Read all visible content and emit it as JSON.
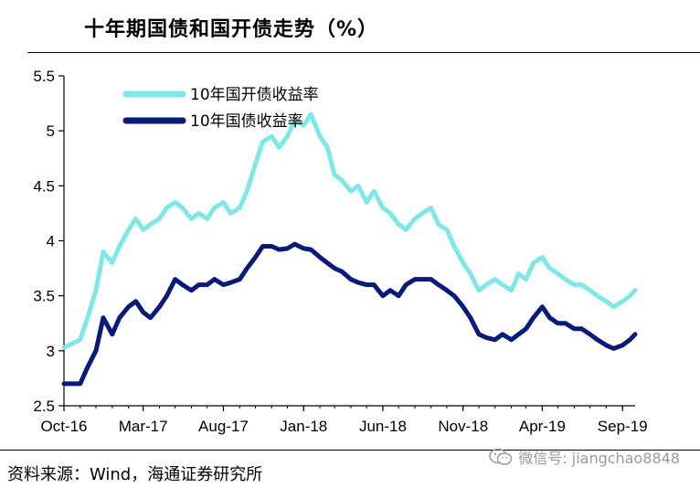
{
  "chart_data": {
    "type": "line",
    "title": "十年期国债和国开债走势（%）",
    "xlabel": "",
    "ylabel": "",
    "ylim": [
      2.5,
      5.5
    ],
    "y_ticks": [
      "2.5",
      "3",
      "3.5",
      "4",
      "4.5",
      "5",
      "5.5"
    ],
    "x_ticks": [
      "Oct-16",
      "Mar-17",
      "Aug-17",
      "Jan-18",
      "Jun-18",
      "Nov-18",
      "Apr-19",
      "Sep-19"
    ],
    "x": [
      "2016-10-01",
      "2016-11-01",
      "2016-11-15",
      "2016-12-01",
      "2016-12-15",
      "2017-01-01",
      "2017-01-15",
      "2017-02-01",
      "2017-02-15",
      "2017-03-01",
      "2017-03-15",
      "2017-04-01",
      "2017-04-15",
      "2017-05-01",
      "2017-05-15",
      "2017-06-01",
      "2017-06-15",
      "2017-07-01",
      "2017-07-15",
      "2017-08-01",
      "2017-08-15",
      "2017-09-01",
      "2017-09-15",
      "2017-10-01",
      "2017-10-15",
      "2017-11-01",
      "2017-11-15",
      "2017-12-01",
      "2017-12-15",
      "2018-01-01",
      "2018-01-15",
      "2018-02-01",
      "2018-02-15",
      "2018-03-01",
      "2018-03-15",
      "2018-04-01",
      "2018-04-15",
      "2018-05-01",
      "2018-05-15",
      "2018-06-01",
      "2018-06-15",
      "2018-07-01",
      "2018-07-15",
      "2018-08-01",
      "2018-08-15",
      "2018-09-01",
      "2018-09-15",
      "2018-10-01",
      "2018-10-15",
      "2018-11-01",
      "2018-11-15",
      "2018-12-01",
      "2018-12-15",
      "2019-01-01",
      "2019-01-15",
      "2019-02-01",
      "2019-02-15",
      "2019-03-01",
      "2019-03-15",
      "2019-04-01",
      "2019-04-15",
      "2019-05-01",
      "2019-05-15",
      "2019-06-01",
      "2019-06-15",
      "2019-07-01",
      "2019-07-15",
      "2019-08-01",
      "2019-08-15",
      "2019-09-01",
      "2019-09-15",
      "2019-09-25"
    ],
    "series": [
      {
        "name": "10年国开债收益率",
        "color": "#7FE8E6",
        "values": [
          3.03,
          3.1,
          3.3,
          3.55,
          3.9,
          3.8,
          3.95,
          4.1,
          4.2,
          4.1,
          4.15,
          4.2,
          4.3,
          4.35,
          4.3,
          4.2,
          4.25,
          4.2,
          4.3,
          4.35,
          4.25,
          4.3,
          4.45,
          4.7,
          4.9,
          4.95,
          4.85,
          4.95,
          5.1,
          5.05,
          5.15,
          4.95,
          4.85,
          4.6,
          4.55,
          4.45,
          4.5,
          4.35,
          4.45,
          4.3,
          4.25,
          4.15,
          4.1,
          4.2,
          4.25,
          4.3,
          4.15,
          4.1,
          3.95,
          3.8,
          3.7,
          3.55,
          3.6,
          3.65,
          3.6,
          3.55,
          3.7,
          3.65,
          3.8,
          3.85,
          3.75,
          3.7,
          3.65,
          3.6,
          3.6,
          3.55,
          3.5,
          3.45,
          3.4,
          3.45,
          3.5,
          3.55
        ]
      },
      {
        "name": "10年国债收益率",
        "color": "#0A1A7A",
        "values": [
          2.7,
          2.7,
          2.85,
          3.0,
          3.3,
          3.15,
          3.3,
          3.4,
          3.45,
          3.35,
          3.3,
          3.4,
          3.5,
          3.65,
          3.6,
          3.55,
          3.6,
          3.6,
          3.65,
          3.6,
          3.62,
          3.65,
          3.75,
          3.85,
          3.95,
          3.95,
          3.92,
          3.93,
          3.97,
          3.93,
          3.92,
          3.85,
          3.8,
          3.75,
          3.72,
          3.65,
          3.62,
          3.6,
          3.6,
          3.5,
          3.55,
          3.5,
          3.6,
          3.65,
          3.65,
          3.65,
          3.6,
          3.55,
          3.5,
          3.4,
          3.3,
          3.15,
          3.12,
          3.1,
          3.15,
          3.1,
          3.15,
          3.2,
          3.3,
          3.4,
          3.3,
          3.25,
          3.25,
          3.2,
          3.2,
          3.15,
          3.1,
          3.05,
          3.02,
          3.05,
          3.1,
          3.15
        ]
      }
    ],
    "legend_position": "top-left",
    "grid": false
  },
  "source_text": "资料来源：Wind，海通证券研究所",
  "watermark_text": "微信号: jiangchao8848"
}
